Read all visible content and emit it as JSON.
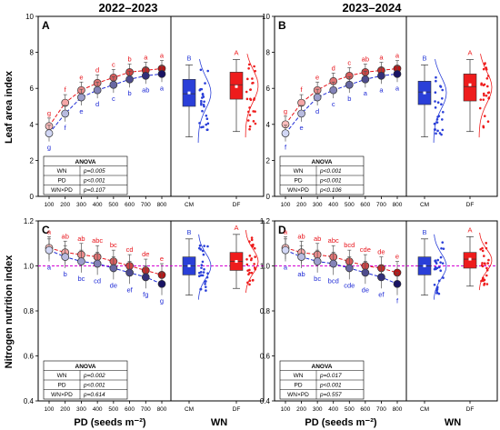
{
  "colors": {
    "cm": "#1f2bd6",
    "df": "#e8141b",
    "cm_fill": "#2a3fd8",
    "df_fill": "#ee1c1c",
    "ref_line": "#d400d4"
  },
  "headers": {
    "left": "2022–2023",
    "right": "2023–2024"
  },
  "y_titles": {
    "top": "Leaf area index",
    "bottom": "Nitrogen nutrition index"
  },
  "x_titles": {
    "pd": "PD (seeds m⁻²)",
    "wn": "WN"
  },
  "pd_ticks": [
    "100",
    "200",
    "300",
    "400",
    "500",
    "600",
    "700",
    "800"
  ],
  "wn_ticks": [
    "CM",
    "DF"
  ],
  "chart_data": [
    {
      "panel": "A",
      "type": "line",
      "ylabel": "Leaf area index",
      "xlabel": "PD (seeds m⁻²)",
      "ylim": [
        0,
        10
      ],
      "yticks": [
        "0",
        "2",
        "4",
        "6",
        "8",
        "10"
      ],
      "x": [
        100,
        200,
        300,
        400,
        500,
        600,
        700,
        800
      ],
      "series": [
        {
          "name": "DF",
          "values": [
            3.9,
            5.2,
            5.9,
            6.3,
            6.6,
            6.9,
            7.0,
            7.1
          ],
          "letters": [
            "g",
            "f",
            "e",
            "d",
            "c",
            "b",
            "a",
            "a"
          ]
        },
        {
          "name": "CM",
          "values": [
            3.5,
            4.6,
            5.5,
            5.9,
            6.2,
            6.5,
            6.7,
            6.8
          ],
          "letters": [
            "g",
            "f",
            "e",
            "d",
            "c",
            "b",
            "ab",
            "a"
          ]
        }
      ],
      "box": {
        "categories": [
          "CM",
          "DF"
        ],
        "letters": [
          "B",
          "A"
        ],
        "cm": {
          "median": 5.7,
          "q1": 5.0,
          "q3": 6.5,
          "whisker_low": 3.3,
          "whisker_high": 7.3,
          "mean": 5.75
        },
        "df": {
          "median": 6.2,
          "q1": 5.4,
          "q3": 6.9,
          "whisker_low": 3.6,
          "whisker_high": 7.6,
          "mean": 6.1
        }
      },
      "anova": {
        "title": "ANOVA",
        "rows": [
          [
            "WN",
            "p=0.005"
          ],
          [
            "PD",
            "p<0.001"
          ],
          [
            "WN×PD",
            "p=0.107"
          ]
        ]
      }
    },
    {
      "panel": "B",
      "type": "line",
      "ylabel": "",
      "xlabel": "PD (seeds m⁻²)",
      "ylim": [
        0,
        10
      ],
      "yticks": [
        "0",
        "2",
        "4",
        "6",
        "8",
        "10"
      ],
      "x": [
        100,
        200,
        300,
        400,
        500,
        600,
        700,
        800
      ],
      "series": [
        {
          "name": "DF",
          "values": [
            4.0,
            5.2,
            5.9,
            6.4,
            6.7,
            6.9,
            7.0,
            7.1
          ],
          "letters": [
            "g",
            "f",
            "e",
            "d",
            "c",
            "ab",
            "a",
            "a"
          ]
        },
        {
          "name": "CM",
          "values": [
            3.5,
            4.6,
            5.5,
            5.9,
            6.2,
            6.5,
            6.7,
            6.8
          ],
          "letters": [
            "f",
            "e",
            "d",
            "c",
            "b",
            "a",
            "a",
            "a"
          ]
        }
      ],
      "box": {
        "categories": [
          "CM",
          "DF"
        ],
        "letters": [
          "B",
          "A"
        ],
        "cm": {
          "median": 5.8,
          "q1": 5.1,
          "q3": 6.4,
          "whisker_low": 3.3,
          "whisker_high": 7.3,
          "mean": 5.75
        },
        "df": {
          "median": 6.1,
          "q1": 5.3,
          "q3": 6.8,
          "whisker_low": 3.6,
          "whisker_high": 7.6,
          "mean": 6.2
        }
      },
      "anova": {
        "title": "ANOVA",
        "rows": [
          [
            "WN",
            "p<0.001"
          ],
          [
            "PD",
            "p<0.001"
          ],
          [
            "WN×PD",
            "p<0.106"
          ]
        ]
      }
    },
    {
      "panel": "C",
      "type": "line",
      "ylabel": "Nitrogen nutrition index",
      "xlabel": "PD (seeds m⁻²)",
      "ylim": [
        0.4,
        1.2
      ],
      "yticks": [
        "0.4",
        "0.6",
        "0.8",
        "1.0",
        "1.2"
      ],
      "reference_line": 1.0,
      "x": [
        100,
        200,
        300,
        400,
        500,
        600,
        700,
        800
      ],
      "series": [
        {
          "name": "DF",
          "values": [
            1.08,
            1.06,
            1.05,
            1.04,
            1.02,
            1.0,
            0.98,
            0.96
          ],
          "letters": [
            "a",
            "ab",
            "ab",
            "abc",
            "bc",
            "cd",
            "de",
            "e"
          ]
        },
        {
          "name": "CM",
          "values": [
            1.07,
            1.04,
            1.02,
            1.01,
            0.99,
            0.97,
            0.95,
            0.92
          ],
          "letters": [
            "a",
            "b",
            "bc",
            "cd",
            "de",
            "ef",
            "fg",
            "g"
          ]
        }
      ],
      "box": {
        "categories": [
          "CM",
          "DF"
        ],
        "letters": [
          "B",
          "A"
        ],
        "cm": {
          "median": 1.0,
          "q1": 0.96,
          "q3": 1.04,
          "whisker_low": 0.87,
          "whisker_high": 1.12,
          "mean": 1.0
        },
        "df": {
          "median": 1.02,
          "q1": 0.98,
          "q3": 1.06,
          "whisker_low": 0.9,
          "whisker_high": 1.14,
          "mean": 1.02
        }
      },
      "anova": {
        "title": "ANOVA",
        "rows": [
          [
            "WN",
            "p=0.002"
          ],
          [
            "PD",
            "p<0.001"
          ],
          [
            "WN×PD",
            "p=0.614"
          ]
        ]
      }
    },
    {
      "panel": "D",
      "type": "line",
      "ylabel": "",
      "xlabel": "PD (seeds m⁻²)",
      "ylim": [
        0.4,
        1.2
      ],
      "yticks": [
        "0.4",
        "0.6",
        "0.8",
        "1.0",
        "1.2"
      ],
      "reference_line": 1.0,
      "x": [
        100,
        200,
        300,
        400,
        500,
        600,
        700,
        800
      ],
      "series": [
        {
          "name": "DF",
          "values": [
            1.08,
            1.06,
            1.05,
            1.04,
            1.02,
            1.0,
            0.99,
            0.97
          ],
          "letters": [
            "a",
            "ab",
            "ab",
            "abc",
            "bcd",
            "cde",
            "de",
            "e"
          ]
        },
        {
          "name": "CM",
          "values": [
            1.07,
            1.04,
            1.02,
            1.01,
            0.99,
            0.97,
            0.95,
            0.92
          ],
          "letters": [
            "a",
            "ab",
            "bc",
            "bcd",
            "cde",
            "de",
            "ef",
            "f"
          ]
        }
      ],
      "box": {
        "categories": [
          "CM",
          "DF"
        ],
        "letters": [
          "B",
          "A"
        ],
        "cm": {
          "median": 1.0,
          "q1": 0.96,
          "q3": 1.04,
          "whisker_low": 0.87,
          "whisker_high": 1.12,
          "mean": 1.0
        },
        "df": {
          "median": 1.03,
          "q1": 0.99,
          "q3": 1.06,
          "whisker_low": 0.91,
          "whisker_high": 1.13,
          "mean": 1.03
        }
      },
      "anova": {
        "title": "ANOVA",
        "rows": [
          [
            "WN",
            "p=0.017"
          ],
          [
            "PD",
            "p<0.001"
          ],
          [
            "WN×PD",
            "p=0.557"
          ]
        ]
      }
    }
  ]
}
